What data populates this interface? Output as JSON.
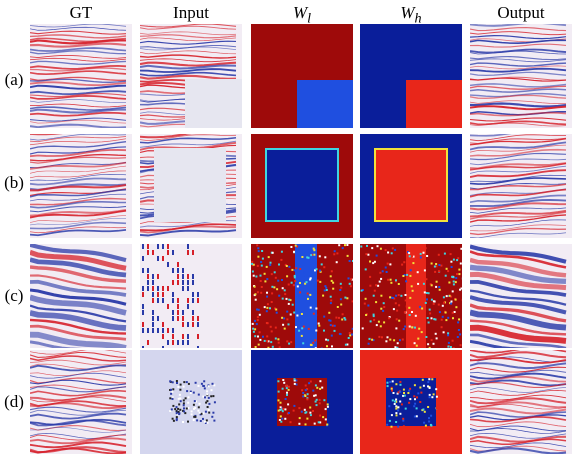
{
  "columns": [
    {
      "label": "GT"
    },
    {
      "label": "Input"
    },
    {
      "label": "W",
      "sub": "l"
    },
    {
      "label": "W",
      "sub": "h"
    },
    {
      "label": "Output"
    }
  ],
  "rows": [
    {
      "label": "(a)"
    },
    {
      "label": "(b)"
    },
    {
      "label": "(c)"
    },
    {
      "label": "(d)"
    }
  ],
  "colors": {
    "seismic_red": "#d6202a",
    "seismic_blue": "#2a3aa8",
    "seismic_white": "#f2ecf4",
    "jet_dark_red": "#9e0a0a",
    "jet_red": "#e8261a",
    "jet_dark_blue": "#0a1e9a",
    "jet_blue": "#1f4fe0",
    "input_fill": "#e6e6f0"
  }
}
